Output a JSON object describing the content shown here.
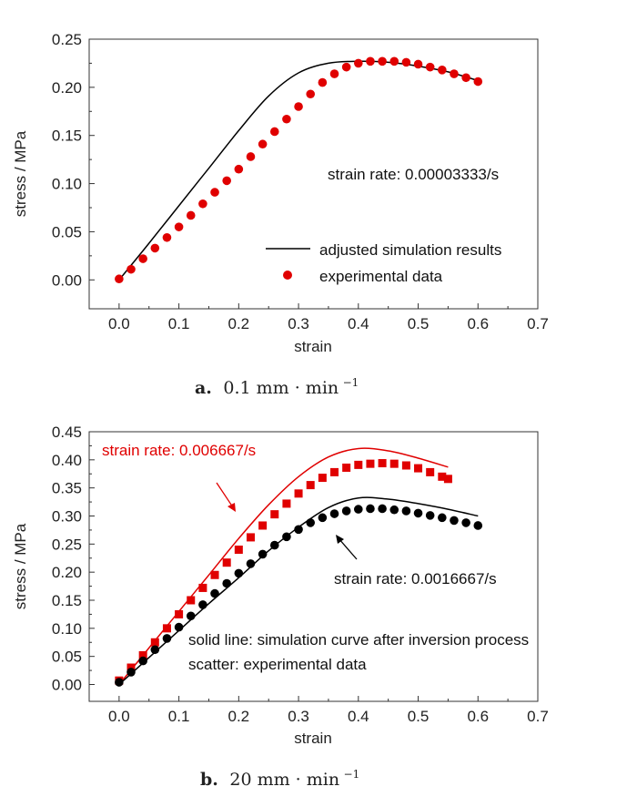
{
  "colors": {
    "red": "#e00000",
    "black": "#000000",
    "axis": "#333333"
  },
  "chart_data": [
    {
      "type": "line",
      "xlabel": "strain",
      "ylabel": "stress / MPa",
      "xlim": [
        -0.05,
        0.7
      ],
      "ylim": [
        -0.03,
        0.25
      ],
      "xticks": [
        "0.0",
        "0.1",
        "0.2",
        "0.3",
        "0.4",
        "0.5",
        "0.6",
        "0.7"
      ],
      "yticks": [
        "0.00",
        "0.05",
        "0.10",
        "0.15",
        "0.20",
        "0.25"
      ],
      "annotation": "strain rate: 0.00003333/s",
      "legend": {
        "line_label": "adjusted simulation results",
        "marker_label": "experimental data",
        "placement": "lower-right"
      },
      "caption": {
        "letter": "a.",
        "text": "0.1 mm · min",
        "sup": "−1"
      },
      "series": [
        {
          "name": "adjusted simulation results",
          "kind": "line",
          "color": "#000000",
          "x": [
            0.0,
            0.05,
            0.1,
            0.15,
            0.2,
            0.25,
            0.3,
            0.35,
            0.4,
            0.45,
            0.5,
            0.55,
            0.6
          ],
          "y": [
            0.0,
            0.038,
            0.077,
            0.116,
            0.155,
            0.191,
            0.215,
            0.225,
            0.227,
            0.226,
            0.222,
            0.216,
            0.207
          ]
        },
        {
          "name": "experimental data",
          "kind": "marker",
          "marker": "circle",
          "color": "#e00000",
          "x": [
            0.0,
            0.02,
            0.04,
            0.06,
            0.08,
            0.1,
            0.12,
            0.14,
            0.16,
            0.18,
            0.2,
            0.22,
            0.24,
            0.26,
            0.28,
            0.3,
            0.32,
            0.34,
            0.36,
            0.38,
            0.4,
            0.42,
            0.44,
            0.46,
            0.48,
            0.5,
            0.52,
            0.54,
            0.56,
            0.58,
            0.6
          ],
          "y": [
            0.001,
            0.011,
            0.022,
            0.033,
            0.044,
            0.055,
            0.067,
            0.079,
            0.091,
            0.103,
            0.115,
            0.128,
            0.141,
            0.154,
            0.167,
            0.18,
            0.193,
            0.205,
            0.214,
            0.221,
            0.225,
            0.227,
            0.227,
            0.227,
            0.226,
            0.224,
            0.221,
            0.218,
            0.214,
            0.21,
            0.206
          ]
        }
      ]
    },
    {
      "type": "line",
      "xlabel": "strain",
      "ylabel": "stress / MPa",
      "xlim": [
        -0.05,
        0.7
      ],
      "ylim": [
        -0.03,
        0.45
      ],
      "xticks": [
        "0.0",
        "0.1",
        "0.2",
        "0.3",
        "0.4",
        "0.5",
        "0.6",
        "0.7"
      ],
      "yticks": [
        "0.00",
        "0.05",
        "0.10",
        "0.15",
        "0.20",
        "0.25",
        "0.30",
        "0.35",
        "0.40",
        "0.45"
      ],
      "annotations": {
        "red": "strain rate: 0.006667/s",
        "black": "strain rate: 0.0016667/s",
        "note1": "solid line: simulation curve after inversion process",
        "note2": "scatter: experimental data"
      },
      "caption": {
        "letter": "b.",
        "text": "20 mm · min",
        "sup": "−1"
      },
      "series": [
        {
          "kind": "line",
          "color": "#e00000",
          "x": [
            0.0,
            0.05,
            0.1,
            0.15,
            0.2,
            0.25,
            0.3,
            0.35,
            0.4,
            0.45,
            0.5,
            0.55
          ],
          "y": [
            0.0,
            0.065,
            0.13,
            0.195,
            0.26,
            0.32,
            0.37,
            0.405,
            0.42,
            0.416,
            0.403,
            0.387
          ]
        },
        {
          "kind": "marker",
          "marker": "square",
          "color": "#e00000",
          "x": [
            0.0,
            0.02,
            0.04,
            0.06,
            0.08,
            0.1,
            0.12,
            0.14,
            0.16,
            0.18,
            0.2,
            0.22,
            0.24,
            0.26,
            0.28,
            0.3,
            0.32,
            0.34,
            0.36,
            0.38,
            0.4,
            0.42,
            0.44,
            0.46,
            0.48,
            0.5,
            0.52,
            0.54,
            0.55
          ],
          "y": [
            0.007,
            0.03,
            0.052,
            0.075,
            0.1,
            0.125,
            0.15,
            0.172,
            0.195,
            0.217,
            0.24,
            0.262,
            0.283,
            0.303,
            0.322,
            0.34,
            0.355,
            0.368,
            0.378,
            0.386,
            0.391,
            0.393,
            0.394,
            0.393,
            0.39,
            0.385,
            0.378,
            0.37,
            0.366
          ]
        },
        {
          "kind": "line",
          "color": "#000000",
          "x": [
            0.0,
            0.05,
            0.1,
            0.15,
            0.2,
            0.25,
            0.3,
            0.35,
            0.4,
            0.45,
            0.5,
            0.55,
            0.6
          ],
          "y": [
            0.0,
            0.048,
            0.096,
            0.144,
            0.19,
            0.238,
            0.28,
            0.315,
            0.332,
            0.33,
            0.322,
            0.312,
            0.3
          ]
        },
        {
          "kind": "marker",
          "marker": "circle",
          "color": "#000000",
          "x": [
            0.0,
            0.02,
            0.04,
            0.06,
            0.08,
            0.1,
            0.12,
            0.14,
            0.16,
            0.18,
            0.2,
            0.22,
            0.24,
            0.26,
            0.28,
            0.3,
            0.32,
            0.34,
            0.36,
            0.38,
            0.4,
            0.42,
            0.44,
            0.46,
            0.48,
            0.5,
            0.52,
            0.54,
            0.56,
            0.58,
            0.6
          ],
          "y": [
            0.004,
            0.022,
            0.042,
            0.062,
            0.082,
            0.102,
            0.122,
            0.142,
            0.162,
            0.18,
            0.198,
            0.215,
            0.232,
            0.248,
            0.263,
            0.276,
            0.288,
            0.297,
            0.304,
            0.309,
            0.312,
            0.313,
            0.313,
            0.311,
            0.309,
            0.305,
            0.301,
            0.297,
            0.292,
            0.288,
            0.283
          ]
        }
      ]
    }
  ]
}
